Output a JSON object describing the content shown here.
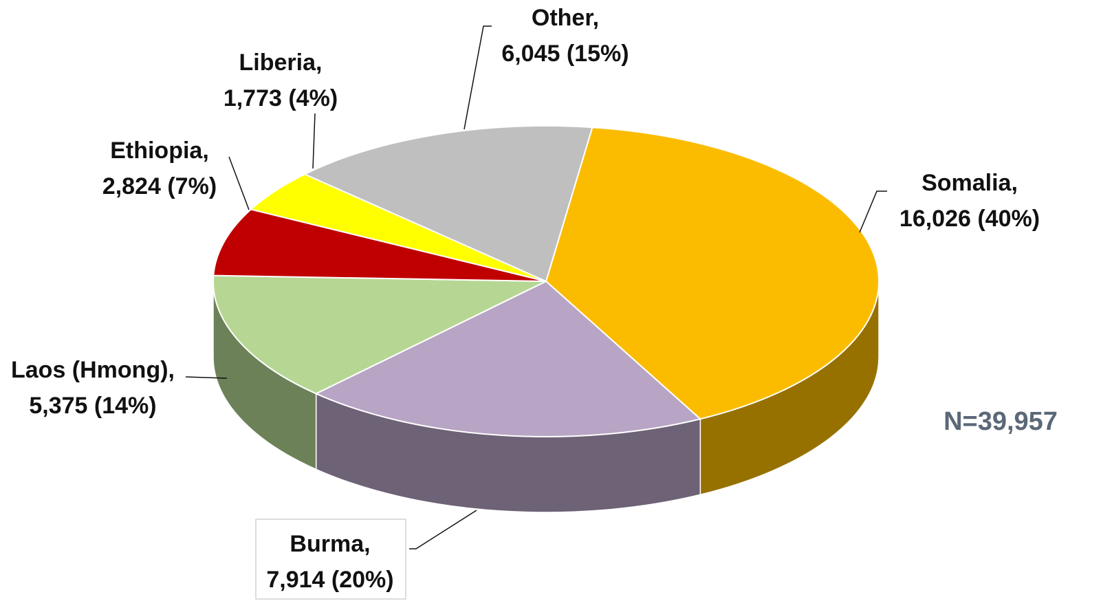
{
  "chart_data": {
    "type": "pie",
    "categories": [
      "Somalia,",
      "Burma,",
      "Laos (Hmong),",
      "Ethiopia,",
      "Liberia,",
      "Other,"
    ],
    "values": [
      16026,
      7914,
      5375,
      2824,
      1773,
      6045
    ],
    "value_labels": [
      "16,026 (40%)",
      "7,914 (20%)",
      "5,375 (14%)",
      "2,824 (7%)",
      "1,773 (4%)",
      "6,045 (15%)"
    ],
    "colors": [
      "#fbbc00",
      "#b8a4c4",
      "#b6d794",
      "#c00000",
      "#ffff00",
      "#bfbfbf"
    ],
    "annotation": "N=39,957"
  }
}
